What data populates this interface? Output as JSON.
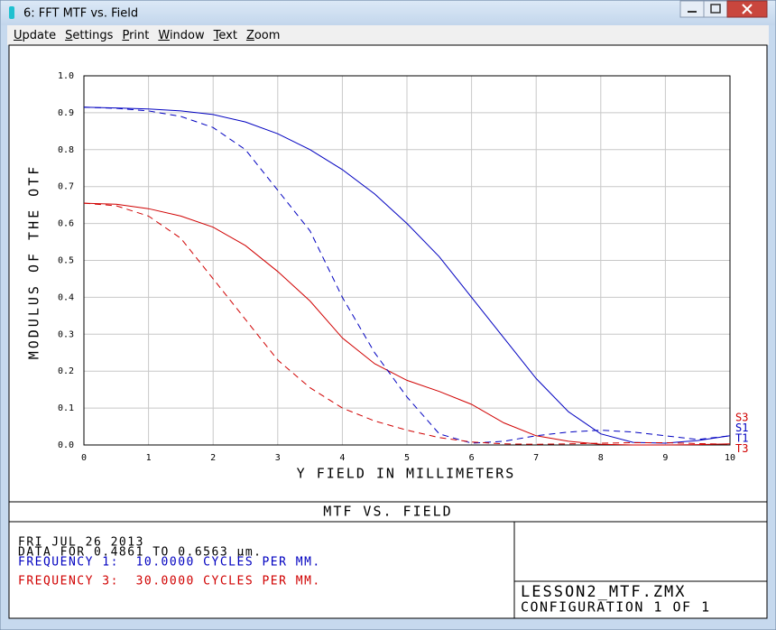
{
  "window": {
    "title": "6: FFT MTF vs. Field",
    "menu": [
      "Update",
      "Settings",
      "Print",
      "Window",
      "Text",
      "Zoom"
    ]
  },
  "chart_data": {
    "type": "line",
    "xlabel": "Y FIELD IN MILLIMETERS",
    "ylabel": "MODULUS OF THE OTF",
    "x": [
      0,
      0.5,
      1,
      1.5,
      2,
      2.5,
      3,
      3.5,
      4,
      4.5,
      5,
      5.5,
      6,
      6.5,
      7,
      7.5,
      8,
      8.5,
      9,
      9.5,
      10
    ],
    "series": [
      {
        "name": "S3",
        "color": "#d00000",
        "style": "solid",
        "values": [
          0.655,
          0.652,
          0.64,
          0.62,
          0.59,
          0.54,
          0.47,
          0.39,
          0.29,
          0.22,
          0.175,
          0.145,
          0.11,
          0.06,
          0.025,
          0.01,
          0.002,
          0.0,
          0.0,
          0.001,
          0.003
        ]
      },
      {
        "name": "S1",
        "color": "#0000c0",
        "style": "solid",
        "values": [
          0.915,
          0.913,
          0.91,
          0.905,
          0.895,
          0.875,
          0.843,
          0.8,
          0.746,
          0.68,
          0.6,
          0.51,
          0.4,
          0.29,
          0.18,
          0.09,
          0.03,
          0.007,
          0.005,
          0.012,
          0.025
        ]
      },
      {
        "name": "T1",
        "color": "#0000c0",
        "style": "dashed",
        "values": [
          0.915,
          0.912,
          0.905,
          0.89,
          0.86,
          0.8,
          0.69,
          0.58,
          0.4,
          0.25,
          0.13,
          0.03,
          0.005,
          0.01,
          0.025,
          0.035,
          0.04,
          0.035,
          0.025,
          0.015,
          0.025
        ]
      },
      {
        "name": "T3",
        "color": "#d00000",
        "style": "dashed",
        "values": [
          0.655,
          0.648,
          0.62,
          0.56,
          0.45,
          0.34,
          0.23,
          0.155,
          0.1,
          0.065,
          0.04,
          0.02,
          0.008,
          0.003,
          0.002,
          0.003,
          0.005,
          0.006,
          0.006,
          0.004,
          0.002
        ]
      }
    ],
    "xlim": [
      0,
      10
    ],
    "xticks": [
      0,
      1,
      2,
      3,
      4,
      5,
      6,
      7,
      8,
      9,
      10
    ],
    "ylim": [
      0,
      1
    ],
    "yticks": [
      {
        "value": 0,
        "label": "0.0"
      },
      0.1,
      0.2,
      0.3,
      0.4,
      0.5,
      0.6,
      0.7,
      0.8,
      0.9,
      {
        "value": 1,
        "label": "1.0"
      }
    ],
    "grid": true
  },
  "footer": {
    "title": "MTF VS. FIELD",
    "lines": [
      {
        "text": "FRI JUL 26 2013",
        "color": "#000000"
      },
      {
        "text": "DATA FOR 0.4861 TO 0.6563 µm.",
        "color": "#000000"
      },
      {
        "text": "FREQUENCY 1:  10.0000 CYCLES PER MM.",
        "color": "#0000c0"
      },
      {
        "text": "FREQUENCY 3:  30.0000 CYCLES PER MM.",
        "color": "#d00000"
      }
    ],
    "file": "LESSON2_MTF.ZMX",
    "config": "CONFIGURATION 1 OF 1"
  }
}
